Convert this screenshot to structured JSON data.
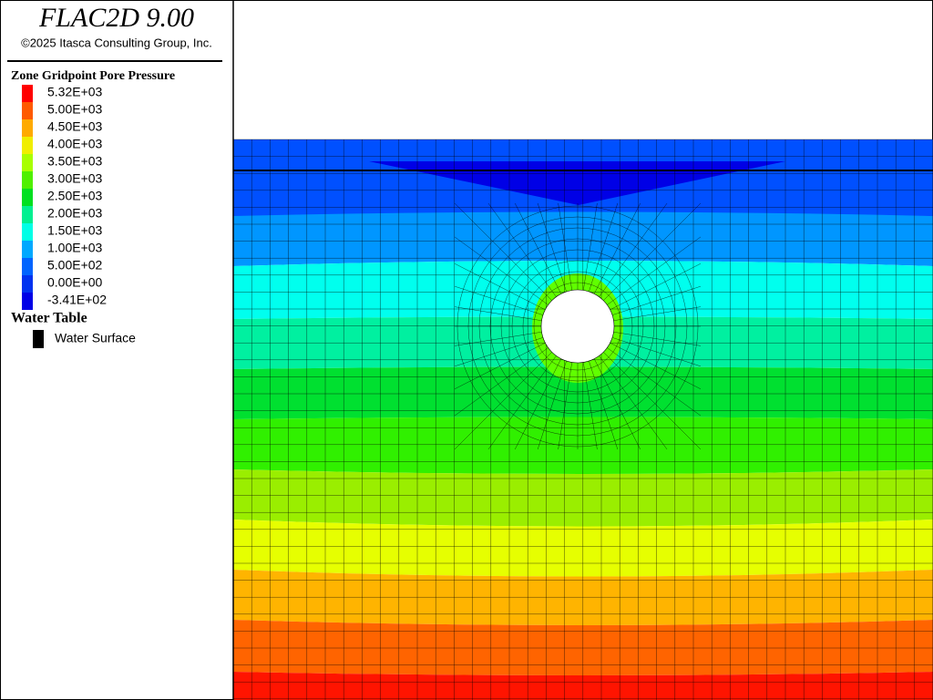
{
  "header": {
    "title": "FLAC2D 9.00",
    "copyright": "©2025 Itasca Consulting Group, Inc."
  },
  "legend": {
    "title": "Zone Gridpoint Pore Pressure",
    "entries": [
      {
        "label": "5.32E+03",
        "color": "#ff0000"
      },
      {
        "label": "5.00E+03",
        "color": "#ff5a00"
      },
      {
        "label": "4.50E+03",
        "color": "#ffaa00"
      },
      {
        "label": "4.00E+03",
        "color": "#f0ee00"
      },
      {
        "label": "3.50E+03",
        "color": "#a8ff00"
      },
      {
        "label": "3.00E+03",
        "color": "#50f000"
      },
      {
        "label": "2.50E+03",
        "color": "#00e020"
      },
      {
        "label": "2.00E+03",
        "color": "#00f090"
      },
      {
        "label": "1.50E+03",
        "color": "#00ffe6"
      },
      {
        "label": "1.00E+03",
        "color": "#00a8ff"
      },
      {
        "label": "5.00E+02",
        "color": "#0064ff"
      },
      {
        "label": "0.00E+00",
        "color": "#0032f0"
      },
      {
        "label": "-3.41E+02",
        "color": "#0000e6"
      }
    ]
  },
  "water_table": {
    "title": "Water Table",
    "entries": [
      {
        "label": "Water Surface",
        "color": "#000000"
      }
    ]
  }
}
